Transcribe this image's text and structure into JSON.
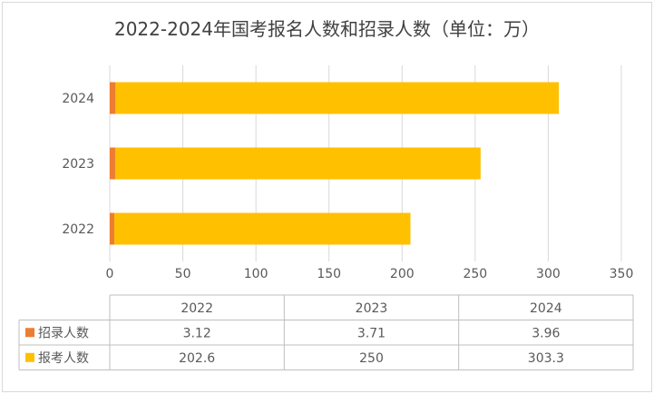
{
  "chart_data": {
    "type": "bar",
    "orientation": "horizontal",
    "stacked": true,
    "title": "2022-2024年国考报名人数和招录人数（单位：万）",
    "categories": [
      "2022",
      "2023",
      "2024"
    ],
    "series": [
      {
        "name": "招录人数",
        "values": [
          3.12,
          3.71,
          3.96
        ],
        "color": "#ED7D31"
      },
      {
        "name": "报考人数",
        "values": [
          202.6,
          250,
          303.3
        ],
        "color": "#FFC000"
      }
    ],
    "xlim": [
      0,
      350
    ],
    "xticks": [
      0,
      50,
      100,
      150,
      200,
      250,
      300,
      350
    ],
    "grid": true,
    "legend": "data-table",
    "data_table": {
      "columns": [
        "2022",
        "2023",
        "2024"
      ],
      "rows": [
        {
          "label": "招录人数",
          "values": [
            "3.12",
            "3.71",
            "3.96"
          ]
        },
        {
          "label": "报考人数",
          "values": [
            "202.6",
            "250",
            "303.3"
          ]
        }
      ]
    }
  }
}
